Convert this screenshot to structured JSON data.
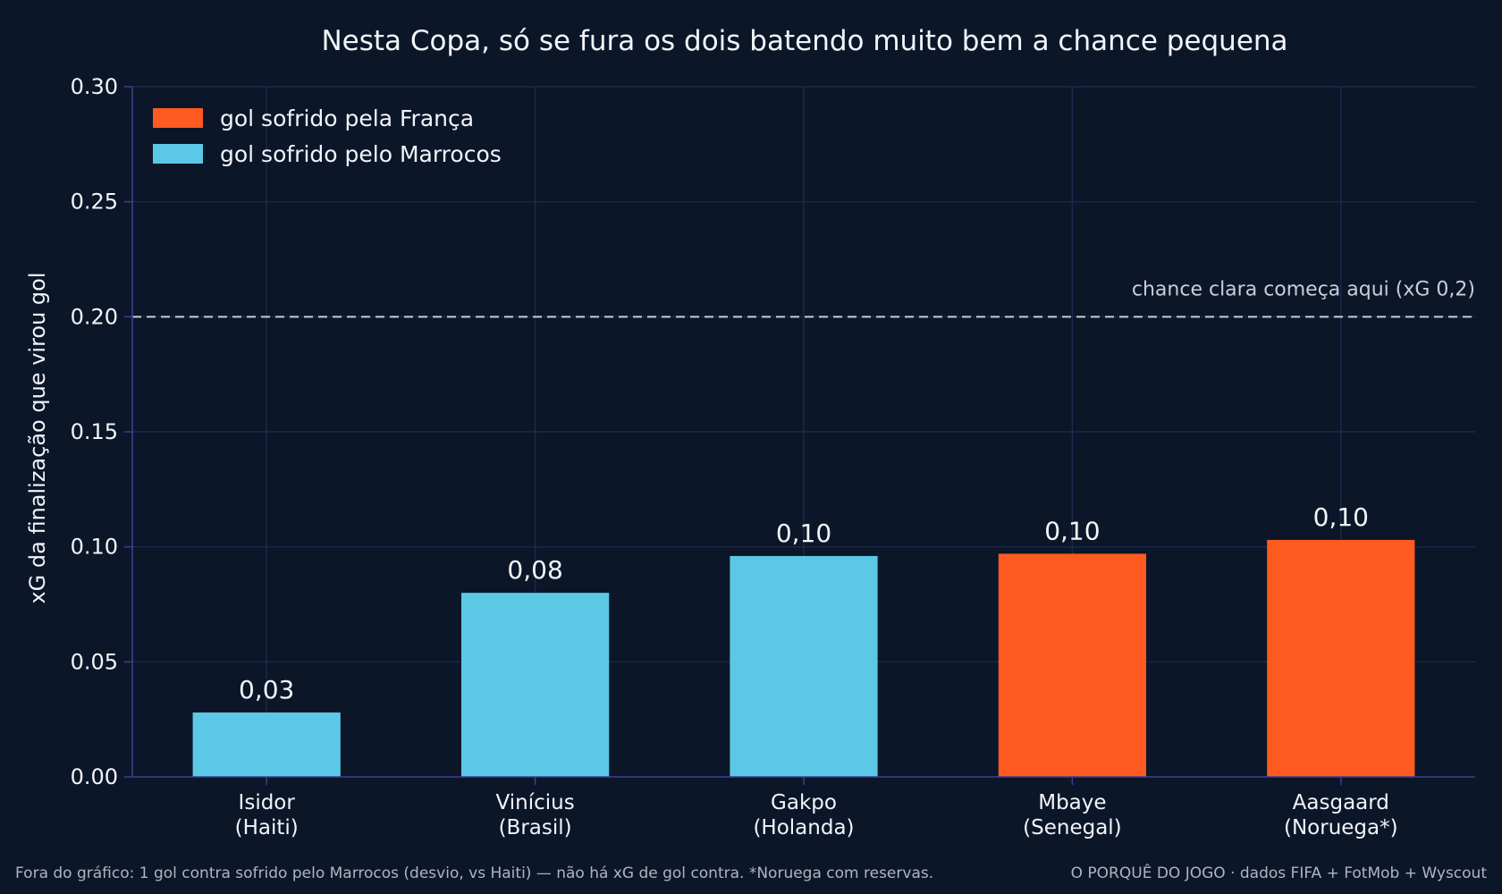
{
  "chart_data": {
    "type": "bar",
    "title": "Nesta Copa, só se fura os dois batendo muito bem a chance pequena",
    "xlabel": "",
    "ylabel": "xG da finalização que virou gol",
    "ylim": [
      0,
      0.3
    ],
    "yticks": [
      "0.00",
      "0.05",
      "0.10",
      "0.15",
      "0.20",
      "0.25",
      "0.30"
    ],
    "grid": true,
    "legend_position": "top-left",
    "legend": [
      {
        "label": "gol sofrido pela França",
        "color": "#ff5a1f"
      },
      {
        "label": "gol sofrido pelo Marrocos",
        "color": "#5bc9e6"
      }
    ],
    "categories": [
      {
        "line1": "Isidor",
        "line2": "(Haiti)",
        "value": 0.028,
        "label": "0,03",
        "team": "Marrocos"
      },
      {
        "line1": "Vinícius",
        "line2": "(Brasil)",
        "value": 0.08,
        "label": "0,08",
        "team": "Marrocos"
      },
      {
        "line1": "Gakpo",
        "line2": "(Holanda)",
        "value": 0.096,
        "label": "0,10",
        "team": "Marrocos"
      },
      {
        "line1": "Mbaye",
        "line2": "(Senegal)",
        "value": 0.097,
        "label": "0,10",
        "team": "França"
      },
      {
        "line1": "Aasgaard",
        "line2": "(Noruega*)",
        "value": 0.103,
        "label": "0,10",
        "team": "França"
      }
    ],
    "reference_line": {
      "value": 0.2,
      "label": "chance clara começa aqui (xG 0,2)",
      "style": "dashed"
    }
  },
  "colors": {
    "background": "#0c1629",
    "france": "#ff5a1f",
    "morocco": "#5bc9e6",
    "grid": "#1f2c50",
    "axis": "#3a3f8f",
    "reference": "#c9ced8"
  },
  "footer": {
    "note": "Fora do gráfico: 1 gol contra sofrido pelo Marrocos (desvio, vs Haiti) — não há xG de gol contra. *Noruega com reservas.",
    "credit": "O PORQUÊ DO JOGO · dados FIFA + FotMob + Wyscout"
  }
}
